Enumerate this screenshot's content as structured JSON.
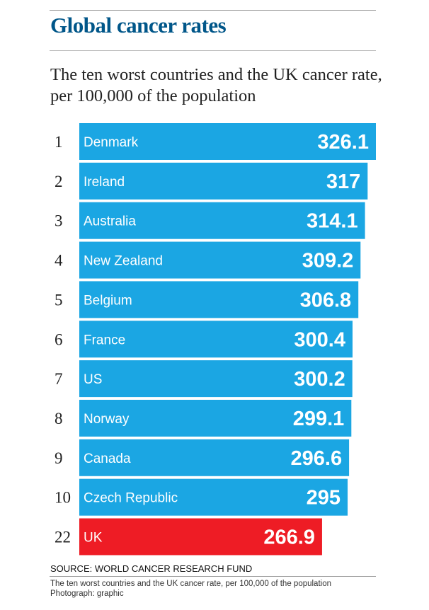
{
  "title": "Global cancer rates",
  "subtitle": "The ten worst countries and the UK cancer rate, per 100,000 of the population",
  "source": "SOURCE: WORLD CANCER RESEARCH FUND",
  "caption": {
    "line1": "The ten worst countries and the UK cancer rate, per 100,000 of the population",
    "line2": "Photograph: graphic"
  },
  "colors": {
    "title": "#005689",
    "bar": "#1ba6e3",
    "highlight": "#ee1c25",
    "text": "#222222"
  },
  "chart_data": {
    "type": "bar",
    "orientation": "horizontal",
    "title": "Global cancer rates",
    "subtitle": "The ten worst countries and the UK cancer rate, per 100,000 of the population",
    "ranks": [
      "1",
      "2",
      "3",
      "4",
      "5",
      "6",
      "7",
      "8",
      "9",
      "10",
      "22"
    ],
    "categories": [
      "Denmark",
      "Ireland",
      "Australia",
      "New Zealand",
      "Belgium",
      "France",
      "US",
      "Norway",
      "Canada",
      "Czech Republic",
      "UK"
    ],
    "values": [
      326.1,
      317,
      314.1,
      309.2,
      306.8,
      300.4,
      300.2,
      299.1,
      296.6,
      295,
      266.9
    ],
    "value_labels": [
      "326.1",
      "317",
      "314.1",
      "309.2",
      "306.8",
      "300.4",
      "300.2",
      "299.1",
      "296.6",
      "295",
      "266.9"
    ],
    "highlight": [
      "UK"
    ],
    "grid": false,
    "legend": "none"
  }
}
